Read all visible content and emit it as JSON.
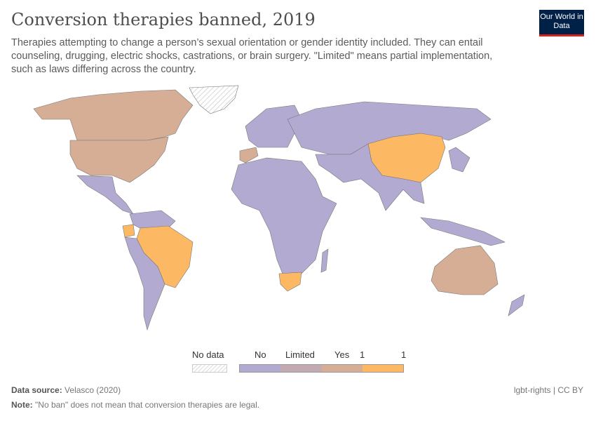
{
  "header": {
    "title": "Conversion therapies banned, 2019",
    "subtitle": "Therapies attempting to change a person’s sexual orientation or gender identity included. They can entail counseling, drugging, electric shocks, castrations, or brain surgery. \"Limited\" means partial implementation, such as laws differing across the country.",
    "logo": "Our World in Data"
  },
  "legend": {
    "no_data": "No data",
    "bins": [
      {
        "label": "No",
        "color": "#b3aad2"
      },
      {
        "label": "Limited",
        "color": "#c2aab2"
      },
      {
        "label": "Yes",
        "color": "#d6ae95"
      },
      {
        "label": "1",
        "color": "#fdb863"
      }
    ],
    "end_label": "1"
  },
  "colors": {
    "no": "#b3aad2",
    "yes": "#d6ae95",
    "one": "#fdb863",
    "no_data": "#ececec",
    "border": "#777777"
  },
  "footer": {
    "source_label": "Data source:",
    "source": "Velasco (2020)",
    "note_label": "Note:",
    "note": "\"No ban\" does not mean that conversion therapies are legal.",
    "license": "lgbt-rights | CC BY"
  }
}
